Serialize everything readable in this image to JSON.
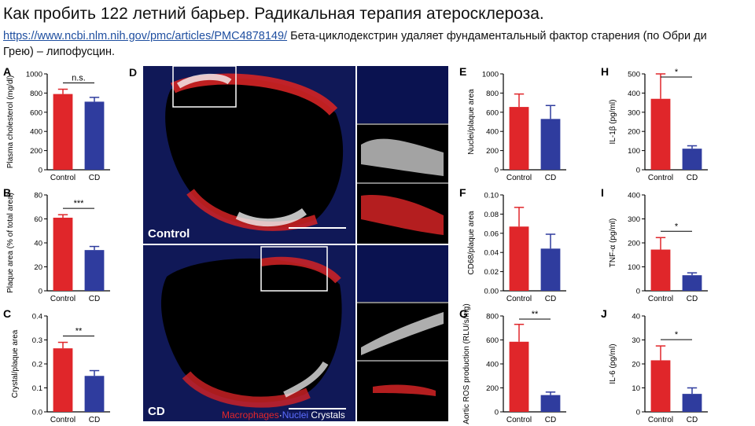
{
  "header": {
    "title": "Как пробить 122 летний барьер. Радикальная терапия атеросклероза.",
    "link": "https://www.ncbi.nlm.nih.gov/pmc/articles/PMC4878149/",
    "text_after_link": " Бета-циклодекстрин удаляет фундаментальный фактор старения (по Обри ди Грею) – липофусцин."
  },
  "colors": {
    "control": "#e0262a",
    "cd": "#2f3c9e",
    "nuclei": "#2b3fd0",
    "crystals": "#ffffff",
    "macrophages": "#e3262a"
  },
  "micrographs": {
    "letter": "D",
    "control_label": "Control",
    "cd_label": "CD",
    "legend": {
      "macrophages": "Macrophages",
      "sep": "·",
      "nuclei": "Nuclei",
      "crystals": "Crystals"
    }
  },
  "chart_data": [
    {
      "id": "A",
      "type": "bar",
      "categories": [
        "Control",
        "CD"
      ],
      "values": [
        790,
        710
      ],
      "errors": [
        50,
        45
      ],
      "ylabel": "Plasma cholesterol (mg/dl)",
      "ylim": [
        0,
        1000
      ],
      "yticks": [
        0,
        200,
        400,
        600,
        800,
        1000
      ],
      "yticklabels": [
        "0",
        "200",
        "400",
        "600",
        "800",
        "1000"
      ],
      "sig": "n.s."
    },
    {
      "id": "B",
      "type": "bar",
      "categories": [
        "Control",
        "CD"
      ],
      "values": [
        61,
        34
      ],
      "errors": [
        2.5,
        3
      ],
      "ylabel": "Plaque area (% of total area)",
      "ylim": [
        0,
        80
      ],
      "yticks": [
        0,
        20,
        40,
        60,
        80
      ],
      "yticklabels": [
        "0",
        "20",
        "40",
        "60",
        "80"
      ],
      "sig": "***"
    },
    {
      "id": "C",
      "type": "bar",
      "categories": [
        "Control",
        "CD"
      ],
      "values": [
        0.265,
        0.15
      ],
      "errors": [
        0.025,
        0.022
      ],
      "ylabel": "Crystal/plaque area",
      "ylim": [
        0,
        0.4
      ],
      "yticks": [
        0,
        0.1,
        0.2,
        0.3,
        0.4
      ],
      "yticklabels": [
        "0.0",
        "0.1",
        "0.2",
        "0.3",
        "0.4"
      ],
      "sig": "**"
    },
    {
      "id": "E",
      "type": "bar",
      "categories": [
        "Control",
        "CD"
      ],
      "values": [
        655,
        530
      ],
      "errors": [
        135,
        140
      ],
      "ylabel": "Nuclei/plaque area",
      "ylim": [
        0,
        1000
      ],
      "yticks": [
        0,
        200,
        400,
        600,
        800,
        1000
      ],
      "yticklabels": [
        "0",
        "200",
        "400",
        "600",
        "800",
        "1000"
      ],
      "sig": ""
    },
    {
      "id": "F",
      "type": "bar",
      "categories": [
        "Control",
        "CD"
      ],
      "values": [
        0.067,
        0.044
      ],
      "errors": [
        0.02,
        0.015
      ],
      "ylabel": "CD68/plaque area",
      "ylim": [
        0,
        0.1
      ],
      "yticks": [
        0,
        0.02,
        0.04,
        0.06,
        0.08,
        0.1
      ],
      "yticklabels": [
        "0.00",
        "0.02",
        "0.04",
        "0.06",
        "0.08",
        "0.10"
      ],
      "sig": ""
    },
    {
      "id": "G",
      "type": "bar",
      "categories": [
        "Control",
        "CD"
      ],
      "values": [
        585,
        140
      ],
      "errors": [
        145,
        25
      ],
      "ylabel": "Aortic ROS production (RLU/s/mg)",
      "ylim": [
        0,
        800
      ],
      "yticks": [
        0,
        200,
        400,
        600,
        800
      ],
      "yticklabels": [
        "0",
        "200",
        "400",
        "600",
        "800"
      ],
      "sig": "**"
    },
    {
      "id": "H",
      "type": "bar",
      "categories": [
        "Control",
        "CD"
      ],
      "values": [
        370,
        110
      ],
      "errors": [
        130,
        15
      ],
      "ylabel": "IL-1β (pg/ml)",
      "ylim": [
        0,
        500
      ],
      "yticks": [
        0,
        100,
        200,
        300,
        400,
        500
      ],
      "yticklabels": [
        "0",
        "100",
        "200",
        "300",
        "400",
        "500"
      ],
      "sig": "*"
    },
    {
      "id": "I",
      "type": "bar",
      "categories": [
        "Control",
        "CD"
      ],
      "values": [
        172,
        65
      ],
      "errors": [
        50,
        10
      ],
      "ylabel": "TNF-α (pg/ml)",
      "ylim": [
        0,
        400
      ],
      "yticks": [
        0,
        100,
        200,
        300,
        400
      ],
      "yticklabels": [
        "0",
        "100",
        "200",
        "300",
        "400"
      ],
      "sig": "*"
    },
    {
      "id": "J",
      "type": "bar",
      "categories": [
        "Control",
        "CD"
      ],
      "values": [
        21.5,
        7.5
      ],
      "errors": [
        6,
        2.5
      ],
      "ylabel": "IL-6 (pg/ml)",
      "ylim": [
        0,
        40
      ],
      "yticks": [
        0,
        10,
        20,
        30,
        40
      ],
      "yticklabels": [
        "0",
        "10",
        "20",
        "30",
        "40"
      ],
      "sig": "*"
    }
  ]
}
